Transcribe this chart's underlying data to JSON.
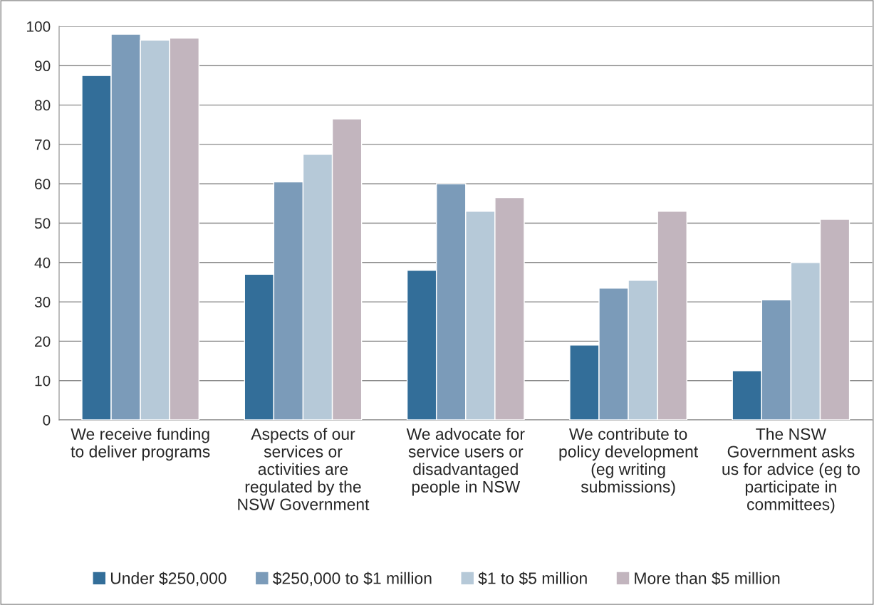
{
  "chart_data": {
    "type": "bar",
    "categories": [
      "We receive funding\nto deliver programs",
      "Aspects of our\nservices or\nactivities are\nregulated by the\nNSW Government",
      "We advocate for\nservice users or\ndisadvantaged\npeople in NSW",
      "We contribute to\npolicy development\n(eg writing\nsubmissions)",
      "The NSW\nGovernment asks\nus for advice (eg to\nparticipate in\ncommittees)"
    ],
    "series": [
      {
        "name": "Under $250,000",
        "color": "#336e99",
        "values": [
          87.5,
          37,
          38,
          19,
          12.5
        ]
      },
      {
        "name": "$250,000 to $1 million",
        "color": "#7b9bb9",
        "values": [
          98,
          60.5,
          60,
          33.5,
          30.5
        ]
      },
      {
        "name": "$1 to $5 million",
        "color": "#b6c9d8",
        "values": [
          96.5,
          67.5,
          53,
          35.5,
          40
        ]
      },
      {
        "name": "More than $5 million",
        "color": "#c2b5be",
        "values": [
          97,
          76.5,
          56.5,
          53,
          51
        ]
      }
    ],
    "ylim": [
      0,
      100
    ],
    "yticks": [
      0,
      10,
      20,
      30,
      40,
      50,
      60,
      70,
      80,
      90,
      100
    ],
    "grid": "y",
    "legend": "bottom"
  }
}
